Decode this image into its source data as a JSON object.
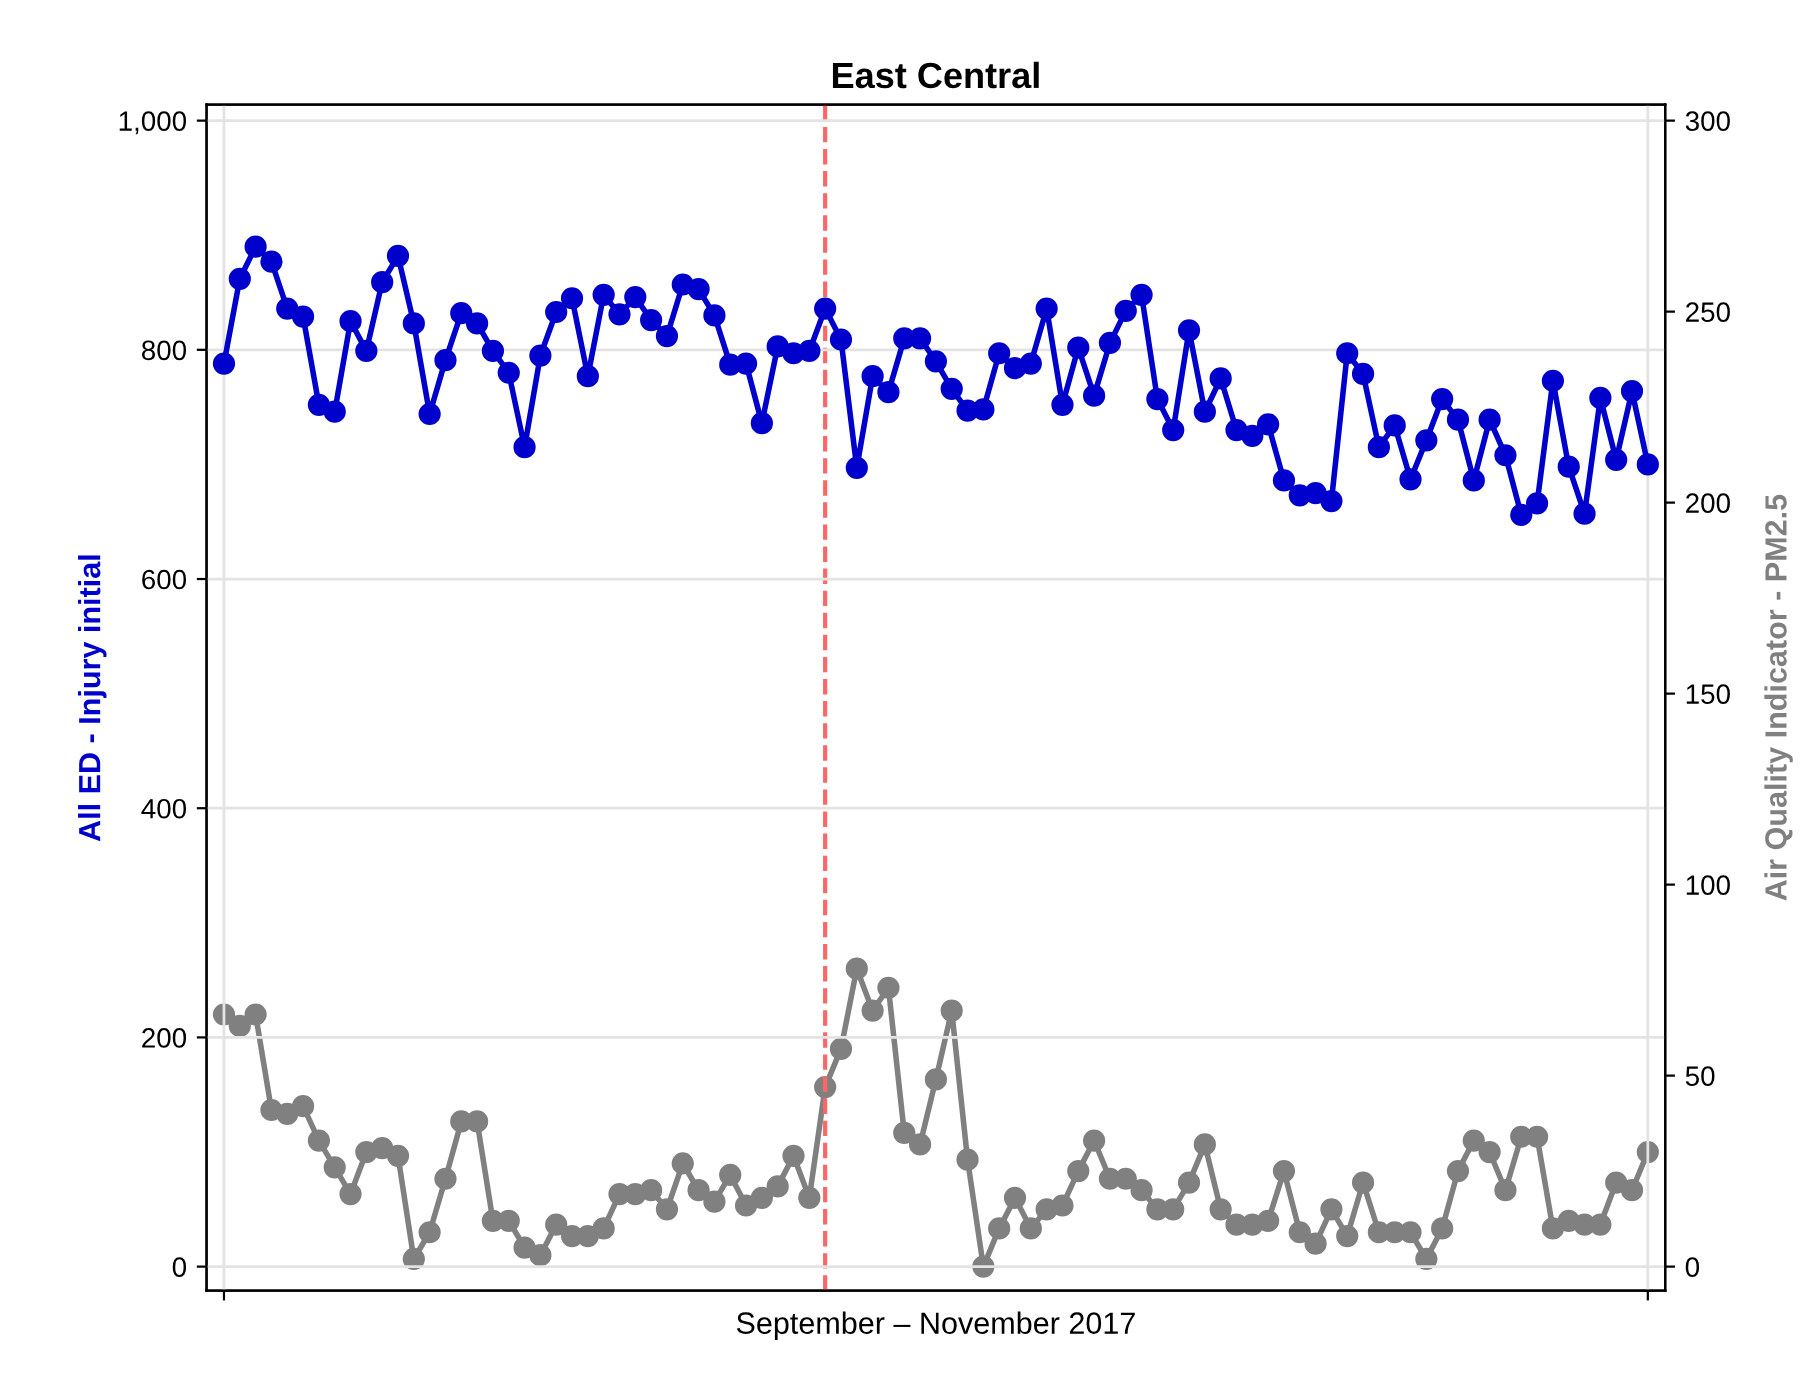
{
  "chart_data": {
    "type": "line",
    "title": "East Central",
    "xlabel": "September – November 2017",
    "ylabel": "All ED - Injury initial",
    "y2label": "Air Quality Indicator - PM2.5",
    "categories": [
      null,
      null,
      null,
      null,
      null,
      null,
      null,
      null,
      null,
      null,
      null,
      null,
      null,
      null,
      null,
      null,
      null,
      null,
      null,
      null,
      null,
      null,
      null,
      null,
      null,
      null,
      null,
      null,
      null,
      null,
      null,
      null,
      null,
      null,
      null,
      null,
      null,
      null,
      null,
      null,
      null,
      null,
      null,
      null,
      null,
      null,
      null,
      null,
      null,
      null,
      null,
      null,
      null,
      null,
      null,
      null,
      null,
      null,
      null,
      null,
      null,
      null,
      null,
      null,
      null,
      null,
      null,
      null,
      null,
      null,
      null,
      null,
      null,
      null,
      null,
      null,
      null,
      null,
      null,
      null,
      null,
      null,
      null,
      null,
      null,
      null,
      null,
      null,
      null,
      null,
      null
    ],
    "series": [
      {
        "color": "#0000cc",
        "values": [
          788,
          862,
          890,
          877,
          836,
          829,
          752,
          746,
          825,
          799,
          859,
          882,
          823,
          744,
          791,
          832,
          823,
          799,
          780,
          715,
          795,
          833,
          845,
          777,
          848,
          831,
          846,
          826,
          812,
          857,
          853,
          830,
          787,
          788,
          736,
          803,
          797,
          799,
          836,
          809,
          697,
          777,
          763,
          810,
          810,
          790,
          766,
          747,
          748,
          797,
          784,
          788,
          836,
          752,
          802,
          760,
          806,
          834,
          848,
          757,
          730,
          817,
          746,
          775,
          730,
          725,
          735,
          686,
          673,
          675,
          668,
          797,
          779,
          715,
          734,
          687,
          721,
          757,
          739,
          686,
          739,
          708,
          656,
          666,
          773,
          698,
          657,
          758,
          704,
          764,
          700
        ]
      },
      {
        "color": "#808080",
        "axis": "y2",
        "values": [
          66,
          63,
          66,
          41,
          40,
          42,
          33,
          26,
          19,
          30,
          31,
          29,
          2,
          9,
          23,
          38,
          38,
          12,
          12,
          5,
          3,
          11,
          8,
          8,
          10,
          19,
          19,
          20,
          15,
          27,
          20,
          17,
          24,
          16,
          18,
          21,
          29,
          18,
          47,
          57,
          78,
          67,
          73,
          35,
          32,
          49,
          67,
          28,
          0,
          10,
          18,
          10,
          15,
          16,
          25,
          33,
          23,
          23,
          20,
          15,
          15,
          22,
          32,
          15,
          11,
          11,
          12,
          25,
          9,
          6,
          15,
          8,
          22,
          9,
          9,
          9,
          2,
          10,
          25,
          33,
          30,
          20,
          34,
          34,
          10,
          12,
          11,
          11,
          22,
          20,
          30
        ]
      }
    ],
    "tick_labels": "y",
    "ylim": [
      -21,
      1014
    ],
    "yticks": [
      0,
      200,
      400,
      600,
      800,
      {
        "value": 1000,
        "label": "1,000"
      }
    ],
    "y2lim": [
      -6.3,
      304.2
    ],
    "y2ticks": [
      0,
      50,
      100,
      150,
      200,
      250,
      300
    ],
    "grid": true,
    "marker": "circle",
    "line_style": "solid"
  }
}
